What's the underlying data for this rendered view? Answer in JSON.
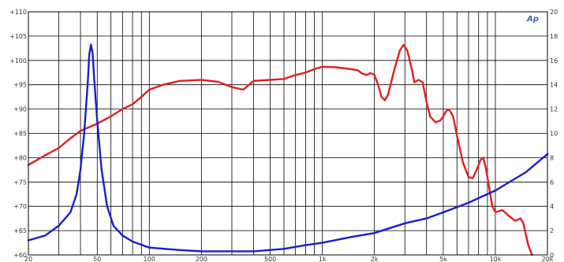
{
  "chart_data": {
    "type": "line",
    "title": "",
    "xlabel": "",
    "ylabel": "",
    "logo_text": "Ap",
    "x_scale": "log",
    "xlim": [
      20,
      20000
    ],
    "y_left_lim": [
      60,
      110
    ],
    "y_right_lim": [
      0,
      20
    ],
    "grid": true,
    "x_ticks": [
      {
        "value": 20,
        "label": "20"
      },
      {
        "value": 50,
        "label": "50"
      },
      {
        "value": 100,
        "label": "100"
      },
      {
        "value": 200,
        "label": "200"
      },
      {
        "value": 500,
        "label": "500"
      },
      {
        "value": 1000,
        "label": "1k"
      },
      {
        "value": 2000,
        "label": "2k"
      },
      {
        "value": 5000,
        "label": "5k"
      },
      {
        "value": 10000,
        "label": "10k"
      },
      {
        "value": 20000,
        "label": "20k"
      }
    ],
    "y_left_ticks": [
      {
        "value": 110,
        "label": "+110"
      },
      {
        "value": 105,
        "label": "+105"
      },
      {
        "value": 100,
        "label": "+100"
      },
      {
        "value": 95,
        "label": "+95"
      },
      {
        "value": 90,
        "label": "+90"
      },
      {
        "value": 85,
        "label": "+85"
      },
      {
        "value": 80,
        "label": "+80"
      },
      {
        "value": 75,
        "label": "+75"
      },
      {
        "value": 70,
        "label": "+70"
      },
      {
        "value": 65,
        "label": "+65"
      },
      {
        "value": 60,
        "label": "+60"
      }
    ],
    "y_right_ticks": [
      {
        "value": 20,
        "label": "20"
      },
      {
        "value": 18,
        "label": "18"
      },
      {
        "value": 16,
        "label": "16"
      },
      {
        "value": 14,
        "label": "14"
      },
      {
        "value": 12,
        "label": "12"
      },
      {
        "value": 10,
        "label": "10"
      },
      {
        "value": 8,
        "label": "8"
      },
      {
        "value": 6,
        "label": "6"
      },
      {
        "value": 4,
        "label": "4"
      },
      {
        "value": 2,
        "label": "2"
      },
      {
        "value": 0,
        "label": "0"
      }
    ],
    "series": [
      {
        "color": "#e02020",
        "axis": "left",
        "points": [
          [
            20,
            78.5
          ],
          [
            25,
            80.5
          ],
          [
            30,
            82.0
          ],
          [
            35,
            84.0
          ],
          [
            40,
            85.5
          ],
          [
            50,
            87.0
          ],
          [
            60,
            88.5
          ],
          [
            70,
            90.0
          ],
          [
            80,
            91.0
          ],
          [
            90,
            92.5
          ],
          [
            100,
            94.0
          ],
          [
            120,
            95.0
          ],
          [
            150,
            95.8
          ],
          [
            200,
            96.0
          ],
          [
            250,
            95.6
          ],
          [
            300,
            94.5
          ],
          [
            350,
            94.0
          ],
          [
            400,
            95.8
          ],
          [
            500,
            96.0
          ],
          [
            600,
            96.2
          ],
          [
            700,
            97.0
          ],
          [
            800,
            97.5
          ],
          [
            900,
            98.2
          ],
          [
            1000,
            98.7
          ],
          [
            1200,
            98.6
          ],
          [
            1400,
            98.3
          ],
          [
            1600,
            98.0
          ],
          [
            1700,
            97.3
          ],
          [
            1800,
            97.0
          ],
          [
            1900,
            97.4
          ],
          [
            2000,
            97.0
          ],
          [
            2100,
            95.0
          ],
          [
            2200,
            92.5
          ],
          [
            2300,
            91.8
          ],
          [
            2400,
            93.0
          ],
          [
            2600,
            98.0
          ],
          [
            2800,
            102.0
          ],
          [
            2950,
            103.2
          ],
          [
            3100,
            102.0
          ],
          [
            3300,
            98.0
          ],
          [
            3400,
            95.5
          ],
          [
            3600,
            96.0
          ],
          [
            3800,
            95.5
          ],
          [
            4000,
            91.5
          ],
          [
            4200,
            88.5
          ],
          [
            4500,
            87.3
          ],
          [
            4800,
            87.6
          ],
          [
            5000,
            88.5
          ],
          [
            5200,
            89.6
          ],
          [
            5400,
            89.9
          ],
          [
            5700,
            88.5
          ],
          [
            6000,
            84.5
          ],
          [
            6500,
            79.0
          ],
          [
            7000,
            76.0
          ],
          [
            7400,
            75.8
          ],
          [
            7800,
            77.5
          ],
          [
            8200,
            79.5
          ],
          [
            8500,
            80.0
          ],
          [
            8800,
            78.0
          ],
          [
            9200,
            74.0
          ],
          [
            9600,
            70.0
          ],
          [
            10000,
            68.8
          ],
          [
            11000,
            69.2
          ],
          [
            12000,
            68.0
          ],
          [
            13000,
            67.0
          ],
          [
            14000,
            67.5
          ],
          [
            14500,
            66.5
          ],
          [
            15500,
            62.0
          ],
          [
            16300,
            59.0
          ]
        ]
      },
      {
        "color": "#1c1cd0",
        "axis": "right",
        "points": [
          [
            20,
            1.2
          ],
          [
            25,
            1.6
          ],
          [
            30,
            2.4
          ],
          [
            35,
            3.5
          ],
          [
            38,
            5.0
          ],
          [
            40,
            7.0
          ],
          [
            42,
            10.0
          ],
          [
            44,
            14.0
          ],
          [
            45,
            16.5
          ],
          [
            46,
            17.3
          ],
          [
            47,
            16.6
          ],
          [
            48,
            14.5
          ],
          [
            50,
            11.0
          ],
          [
            53,
            7.0
          ],
          [
            57,
            4.0
          ],
          [
            62,
            2.4
          ],
          [
            70,
            1.6
          ],
          [
            80,
            1.1
          ],
          [
            100,
            0.6
          ],
          [
            150,
            0.4
          ],
          [
            200,
            0.3
          ],
          [
            400,
            0.3
          ],
          [
            600,
            0.5
          ],
          [
            800,
            0.8
          ],
          [
            1000,
            1.0
          ],
          [
            1500,
            1.5
          ],
          [
            2000,
            1.8
          ],
          [
            3000,
            2.6
          ],
          [
            4000,
            3.0
          ],
          [
            5000,
            3.5
          ],
          [
            7000,
            4.3
          ],
          [
            10000,
            5.3
          ],
          [
            15000,
            6.8
          ],
          [
            20000,
            8.3
          ]
        ]
      }
    ]
  }
}
